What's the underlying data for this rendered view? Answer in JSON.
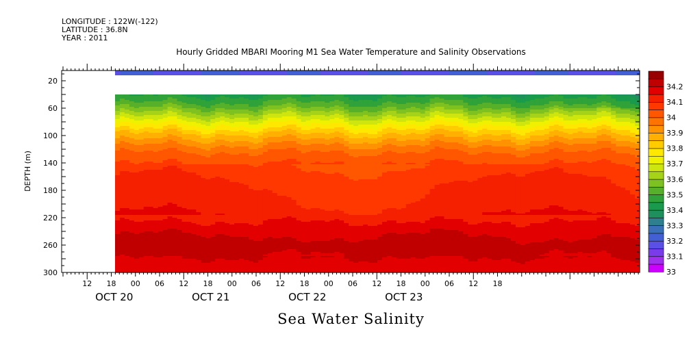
{
  "header": {
    "longitude": "LONGITUDE : 122W(-122)",
    "latitude": "LATITUDE : 36.8N",
    "year": "YEAR : 2011"
  },
  "chart_data": {
    "type": "heatmap",
    "title": "Hourly Gridded MBARI Mooring M1 Sea Water Temperature and Salinity Observations",
    "xlabel": "Sea Water Salinity",
    "ylabel": "DEPTH (m)",
    "y_ticks": [
      "20",
      "60",
      "100",
      "140",
      "180",
      "220",
      "260",
      "300"
    ],
    "y_range": [
      5,
      300
    ],
    "y_reversed": true,
    "x_hour_ticks": [
      "12",
      "18",
      "00",
      "06",
      "12",
      "18",
      "00",
      "06",
      "12",
      "18",
      "00",
      "06",
      "12",
      "18",
      "00",
      "06",
      "12",
      "18"
    ],
    "x_day_labels": [
      "OCT 20",
      "OCT 21",
      "OCT 22",
      "OCT 23"
    ],
    "colorbar": {
      "levels": [
        33,
        33.05,
        33.1,
        33.15,
        33.2,
        33.25,
        33.3,
        33.35,
        33.4,
        33.45,
        33.5,
        33.55,
        33.6,
        33.65,
        33.7,
        33.75,
        33.8,
        33.85,
        33.9,
        33.95,
        34,
        34.05,
        34.1,
        34.15,
        34.2,
        34.25
      ],
      "labels": [
        "33",
        "33.1",
        "33.2",
        "33.3",
        "33.4",
        "33.5",
        "33.6",
        "33.7",
        "33.8",
        "33.9",
        "34",
        "34.1",
        "34.2"
      ],
      "colors": [
        "#cc00ff",
        "#a030ee",
        "#7a3ce8",
        "#5a50e6",
        "#4260d4",
        "#3a70b8",
        "#2f808f",
        "#1f8f5e",
        "#199a4c",
        "#2fa23a",
        "#57b02a",
        "#7ec222",
        "#a5d31a",
        "#cee610",
        "#eef200",
        "#ffe800",
        "#ffcc00",
        "#ffb000",
        "#ff9200",
        "#ff7400",
        "#ff5600",
        "#ff3800",
        "#f52000",
        "#e20000",
        "#c00000",
        "#980000"
      ]
    },
    "profile_depths": [
      5,
      12,
      40,
      55,
      75,
      95,
      115,
      130,
      150,
      175,
      205,
      225,
      245,
      265,
      285,
      300
    ],
    "profile_salinity": [
      33.18,
      33.2,
      33.44,
      33.52,
      33.68,
      33.84,
      33.96,
      34.03,
      34.07,
      34.1,
      34.12,
      34.15,
      34.2,
      34.22,
      34.19,
      34.17
    ]
  }
}
